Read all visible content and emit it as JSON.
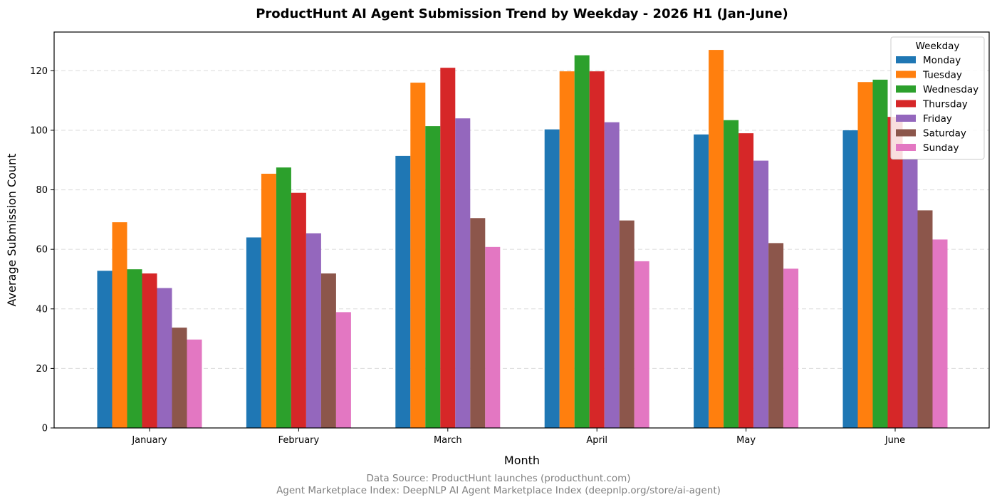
{
  "chart_data": {
    "type": "bar",
    "title": "ProductHunt AI Agent Submission Trend by Weekday - 2026 H1 (Jan-June)",
    "xlabel": "Month",
    "ylabel": "Average Submission Count",
    "categories": [
      "January",
      "February",
      "March",
      "April",
      "May",
      "June"
    ],
    "ylim": [
      0,
      133
    ],
    "yticks": [
      0,
      20,
      40,
      60,
      80,
      100,
      120
    ],
    "grid": "horizontal dashed",
    "legend": {
      "title": "Weekday",
      "position": "top-right"
    },
    "series": [
      {
        "name": "Monday",
        "color": "#1f77b4",
        "values": [
          52.8,
          64.0,
          91.4,
          100.3,
          98.6,
          100.0
        ]
      },
      {
        "name": "Tuesday",
        "color": "#ff7f0e",
        "values": [
          69.1,
          85.4,
          116.0,
          119.8,
          127.0,
          116.2
        ]
      },
      {
        "name": "Wednesday",
        "color": "#2ca02c",
        "values": [
          53.3,
          87.5,
          101.4,
          125.2,
          103.4,
          117.0
        ]
      },
      {
        "name": "Thursday",
        "color": "#d62728",
        "values": [
          51.9,
          79.0,
          121.0,
          119.8,
          99.0,
          104.5
        ]
      },
      {
        "name": "Friday",
        "color": "#9467bd",
        "values": [
          47.0,
          65.4,
          104.0,
          102.7,
          89.8,
          90.2
        ]
      },
      {
        "name": "Saturday",
        "color": "#8c564b",
        "values": [
          33.7,
          51.9,
          70.5,
          69.7,
          62.1,
          73.1
        ]
      },
      {
        "name": "Sunday",
        "color": "#e377c2",
        "values": [
          29.7,
          38.9,
          60.8,
          56.0,
          53.5,
          63.3
        ]
      }
    ]
  },
  "source_lines": [
    "Data Source: ProductHunt launches (producthunt.com)",
    "Agent Marketplace Index: DeepNLP AI Agent Marketplace Index (deepnlp.org/store/ai-agent)"
  ]
}
